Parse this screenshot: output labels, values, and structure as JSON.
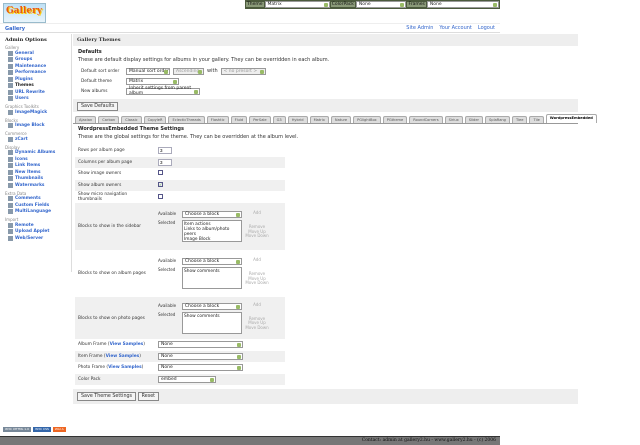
{
  "topbar": {
    "theme_label": "Theme",
    "theme_value": "Matrix",
    "colorpack_label": "ColorPack",
    "colorpack_value": "None",
    "frames_label": "Frames",
    "frames_value": "None"
  },
  "breadcrumb": "Gallery",
  "logo_text": "Gallery",
  "toplinks": [
    "Site Admin",
    "Your Account",
    "Logout"
  ],
  "sidebar": {
    "title": "Admin Options",
    "groups": [
      {
        "label": "Gallery",
        "items": [
          "General",
          "Groups",
          "Maintenance",
          "Performance",
          "Plugins",
          "Themes",
          "URL Rewrite",
          "Users"
        ]
      },
      {
        "label": "Graphics Toolkits",
        "items": [
          "ImageMagick"
        ]
      },
      {
        "label": "Blocks",
        "items": [
          "Image Block"
        ]
      },
      {
        "label": "Commerce",
        "items": [
          "zCart"
        ]
      },
      {
        "label": "Display",
        "items": [
          "Dynamic Albums",
          "Icons",
          "Link Items",
          "New Items",
          "Thumbnails",
          "Watermarks"
        ]
      },
      {
        "label": "Extra Data",
        "items": [
          "Comments",
          "Custom Fields",
          "MultiLanguage"
        ]
      },
      {
        "label": "Import",
        "items": [
          "Remote",
          "Upload Applet",
          "Web/Server"
        ]
      }
    ],
    "current": "Themes"
  },
  "main": {
    "title": "Gallery Themes",
    "defaults_title": "Defaults",
    "defaults_desc": "These are default display settings for albums in your gallery. They can be overridden in each album.",
    "sort_label": "Default sort order",
    "sort_value": "Manual sort order",
    "sort_dir": "Ascending",
    "with_label": "with",
    "presort": "< no presort >",
    "theme_label": "Default theme",
    "theme_value": "Matrix",
    "new_albums_label": "New albums",
    "new_albums_value": "Inherit settings from parent album",
    "save_defaults": "Save Defaults",
    "tabs": [
      "Ajaxian",
      "Carbon",
      "Classic",
      "CopyleR",
      "EclecticThreads",
      "Flashtic",
      "Fluid",
      "PerSale",
      "G3",
      "Hybrid",
      "Matrix",
      "Nature",
      "PGlightBox",
      "PGtheme",
      "RoundCorners",
      "Siriux",
      "Slider",
      "SplaRang",
      "Tiee",
      "Tile",
      "WordpressEmbedded"
    ],
    "active_tab": "WordpressEmbedded",
    "settings_title": "WordpressEmbedded Theme Settings",
    "settings_desc": "These are the global settings for the theme. They can be overridden at the album level.",
    "rows": [
      {
        "label": "Rows per album page",
        "value": "3"
      },
      {
        "label": "Columns per album page",
        "value": "3"
      }
    ],
    "checks": [
      {
        "label": "Show image owners",
        "checked": false
      },
      {
        "label": "Show album owners",
        "checked": true
      },
      {
        "label": "Show micro navigation thumbnails",
        "checked": false
      }
    ],
    "blocks": [
      {
        "label": "Blocks to show in the sidebar",
        "selected": [
          "Item actions",
          "Links to album/photo peers",
          "Image Block"
        ]
      },
      {
        "label": "Blocks to show on album pages",
        "selected": [
          "Show comments"
        ]
      },
      {
        "label": "Blocks to show on photo pages",
        "selected": [
          "Show comments"
        ]
      }
    ],
    "available_label": "Available",
    "selected_label": "Selected",
    "choose": "Choose a block",
    "add": "Add",
    "remove": "Remove",
    "move_up": "Move Up",
    "move_down": "Move Down",
    "frames": [
      {
        "label": "Album Frame",
        "value": "None"
      },
      {
        "label": "Item Frame",
        "value": "None"
      },
      {
        "label": "Photo Frame",
        "value": "None"
      }
    ],
    "view_samples": "View Samples",
    "colorpack_label": "Color Pack",
    "colorpack_value": "embed",
    "save": "Save Theme Settings",
    "reset": "Reset"
  },
  "badges": [
    "W3C XHTML 1.0",
    "W3C CSS",
    "WAI A"
  ],
  "footer": "Contact: admin at gallery2.hu - www.gallery2.hu - (c) 2006"
}
